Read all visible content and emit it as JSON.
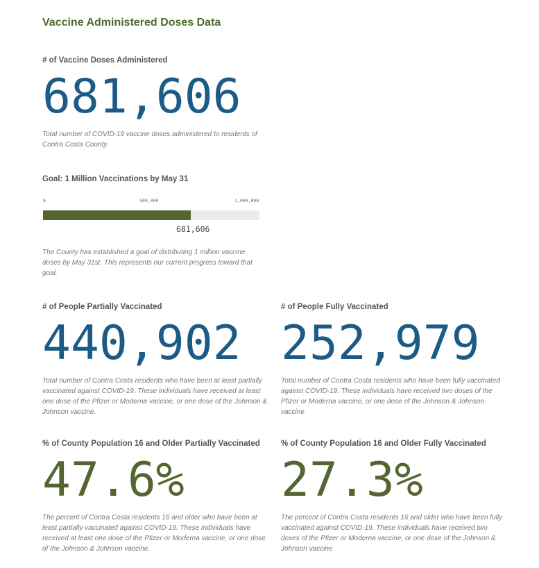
{
  "page": {
    "title": "Vaccine Administered Doses Data"
  },
  "doses": {
    "heading": "# of Vaccine Doses Administered",
    "value": "681,606",
    "description": "Total number of COVID-19 vaccine doses administered to residents of Contra Costa County."
  },
  "goal": {
    "heading": "Goal: 1 Million Vaccinations by May 31",
    "axis": {
      "ticks": [
        "0",
        "500,000",
        "1,000,000"
      ],
      "min": 0,
      "max": 1000000
    },
    "current_value": 681606,
    "current_label": "681,606",
    "bar_color": "#55652f",
    "description": "The County has established a goal of distributing 1 million vaccine doses by May 31st. This represents our current progress toward that goal."
  },
  "partially": {
    "heading": "# of People Partially Vaccinated",
    "value": "440,902",
    "description": "Total number of Contra Costa residents who have been at least partially vaccinated against COVID-19. These individuals have received at least one dose of the Pfizer or Moderna vaccine, or one dose of the Johnson & Johnson vaccine."
  },
  "fully": {
    "heading": "# of People Fully Vaccinated",
    "value": "252,979",
    "description": "Total number of Contra Costa residents who have been fully vaccinated against COVID-19. These individuals have received two doses of the Pfizer or Moderna vaccine, or one dose of the Johnson & Johnson vaccine"
  },
  "pct_partially": {
    "heading": "% of County Population 16 and Older Partially Vaccinated",
    "value": "47.6%",
    "description": "The percent of Contra Costa residents 16 and older who have been at least partially vaccinated against COVID-19. These individuals have received at least one dose of the Pfizer or Moderna vaccine, or one dose of the Johnson & Johnson vaccine."
  },
  "pct_fully": {
    "heading": "% of County Population 16 and Older Fully Vaccinated",
    "value": "27.3%",
    "description": "The percent of Contra Costa residents 16 and older who have been fully vaccinated against COVID-19. These individuals have received two doses of the Pfizer or Moderna vaccine, or one dose of the Johnson & Johnson vaccine"
  },
  "colors": {
    "title": "#4f6a2b",
    "number_blue": "#1b5b86",
    "number_green": "#55652f"
  }
}
